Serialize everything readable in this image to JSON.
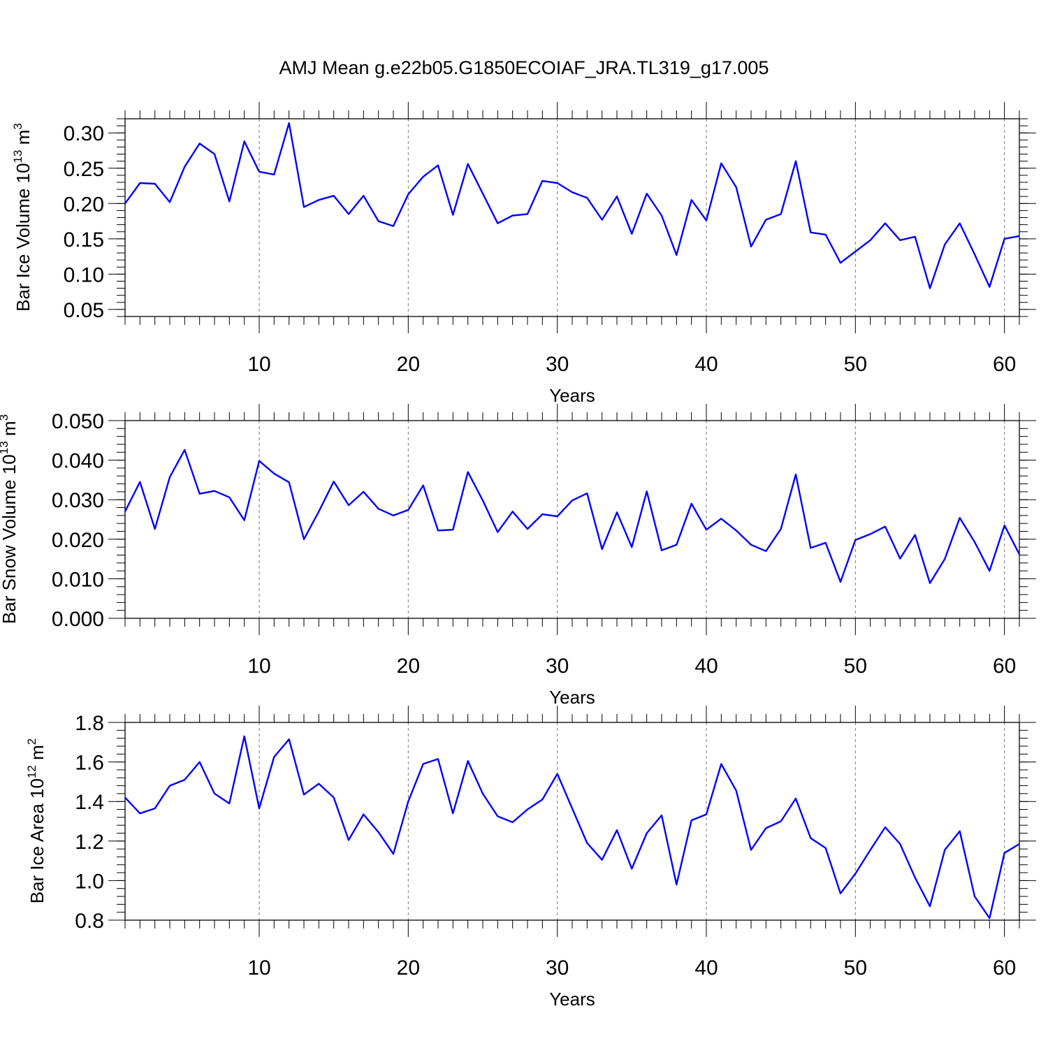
{
  "title": "AMJ Mean g.e22b05.G1850ECOIAF_JRA.TL319_g17.005",
  "line_color": "#0000ff",
  "chart_data": [
    {
      "type": "line",
      "ylabel": "Bar Ice Volume",
      "ylabel_unit_base": "10",
      "ylabel_unit_exp": "13",
      "ylabel_unit": "m",
      "ylabel_unit_power": "3",
      "xlabel": "Years",
      "xlim": [
        1,
        61
      ],
      "ylim": [
        0.04,
        0.32
      ],
      "xticks": [
        10,
        20,
        30,
        40,
        50,
        60
      ],
      "xtick_labels": [
        "10",
        "20",
        "30",
        "40",
        "50",
        "60"
      ],
      "yticks": [
        0.05,
        0.1,
        0.15,
        0.2,
        0.25,
        0.3
      ],
      "ytick_labels": [
        "0.05",
        "0.10",
        "0.15",
        "0.20",
        "0.25",
        "0.30"
      ],
      "yminor_step": 0.01,
      "vgrid": "dashed at major x ticks",
      "x": [
        1,
        2,
        3,
        4,
        5,
        6,
        7,
        8,
        9,
        10,
        11,
        12,
        13,
        14,
        15,
        16,
        17,
        18,
        19,
        20,
        21,
        22,
        23,
        24,
        25,
        26,
        27,
        28,
        29,
        30,
        31,
        32,
        33,
        34,
        35,
        36,
        37,
        38,
        39,
        40,
        41,
        42,
        43,
        44,
        45,
        46,
        47,
        48,
        49,
        50,
        51,
        52,
        53,
        54,
        55,
        56,
        57,
        58,
        59,
        60,
        61
      ],
      "series": [
        {
          "values": [
            0.2,
            0.229,
            0.228,
            0.202,
            0.252,
            0.285,
            0.27,
            0.203,
            0.288,
            0.245,
            0.241,
            0.314,
            0.195,
            0.205,
            0.211,
            0.185,
            0.211,
            0.175,
            0.168,
            0.213,
            0.238,
            0.254,
            0.184,
            0.256,
            0.214,
            0.172,
            0.183,
            0.185,
            0.232,
            0.229,
            0.216,
            0.208,
            0.177,
            0.21,
            0.157,
            0.214,
            0.183,
            0.127,
            0.205,
            0.176,
            0.257,
            0.223,
            0.139,
            0.177,
            0.185,
            0.26,
            0.159,
            0.156,
            0.116,
            0.132,
            0.148,
            0.172,
            0.148,
            0.153,
            0.08,
            0.142,
            0.172,
            0.128,
            0.082,
            0.15,
            0.154
          ]
        }
      ]
    },
    {
      "type": "line",
      "ylabel": "Bar Snow Volume",
      "ylabel_unit_base": "10",
      "ylabel_unit_exp": "13",
      "ylabel_unit": "m",
      "ylabel_unit_power": "3",
      "xlabel": "Years",
      "xlim": [
        1,
        61
      ],
      "ylim": [
        0.0,
        0.05
      ],
      "xticks": [
        10,
        20,
        30,
        40,
        50,
        60
      ],
      "xtick_labels": [
        "10",
        "20",
        "30",
        "40",
        "50",
        "60"
      ],
      "yticks": [
        0.0,
        0.01,
        0.02,
        0.03,
        0.04,
        0.05
      ],
      "ytick_labels": [
        "0.000",
        "0.010",
        "0.020",
        "0.030",
        "0.040",
        "0.050"
      ],
      "yminor_step": 0.002,
      "vgrid": "dashed at major x ticks",
      "x": [
        1,
        2,
        3,
        4,
        5,
        6,
        7,
        8,
        9,
        10,
        11,
        12,
        13,
        14,
        15,
        16,
        17,
        18,
        19,
        20,
        21,
        22,
        23,
        24,
        25,
        26,
        27,
        28,
        29,
        30,
        31,
        32,
        33,
        34,
        35,
        36,
        37,
        38,
        39,
        40,
        41,
        42,
        43,
        44,
        45,
        46,
        47,
        48,
        49,
        50,
        51,
        52,
        53,
        54,
        55,
        56,
        57,
        58,
        59,
        60,
        61
      ],
      "series": [
        {
          "values": [
            0.027,
            0.0345,
            0.0226,
            0.0357,
            0.0426,
            0.0315,
            0.0322,
            0.0306,
            0.0248,
            0.0398,
            0.0366,
            0.0344,
            0.02,
            0.027,
            0.0346,
            0.0286,
            0.032,
            0.0277,
            0.026,
            0.0274,
            0.0336,
            0.0222,
            0.0224,
            0.037,
            0.0298,
            0.0218,
            0.027,
            0.0226,
            0.0263,
            0.0258,
            0.0298,
            0.0316,
            0.0175,
            0.0268,
            0.018,
            0.0321,
            0.0172,
            0.0186,
            0.029,
            0.0224,
            0.0252,
            0.0222,
            0.0186,
            0.017,
            0.0226,
            0.0364,
            0.0178,
            0.0191,
            0.0092,
            0.0198,
            0.0213,
            0.0232,
            0.0151,
            0.0211,
            0.0089,
            0.015,
            0.0254,
            0.0193,
            0.012,
            0.0235,
            0.0162
          ]
        }
      ]
    },
    {
      "type": "line",
      "ylabel": "Bar Ice Area",
      "ylabel_unit_base": "10",
      "ylabel_unit_exp": "12",
      "ylabel_unit": "m",
      "ylabel_unit_power": "2",
      "xlabel": "Years",
      "xlim": [
        1,
        61
      ],
      "ylim": [
        0.8,
        1.8
      ],
      "xticks": [
        10,
        20,
        30,
        40,
        50,
        60
      ],
      "xtick_labels": [
        "10",
        "20",
        "30",
        "40",
        "50",
        "60"
      ],
      "yticks": [
        0.8,
        1.0,
        1.2,
        1.4,
        1.6,
        1.8
      ],
      "ytick_labels": [
        "0.8",
        "1.0",
        "1.2",
        "1.4",
        "1.6",
        "1.8"
      ],
      "yminor_step": 0.04,
      "vgrid": "dashed at major x ticks",
      "x": [
        1,
        2,
        3,
        4,
        5,
        6,
        7,
        8,
        9,
        10,
        11,
        12,
        13,
        14,
        15,
        16,
        17,
        18,
        19,
        20,
        21,
        22,
        23,
        24,
        25,
        26,
        27,
        28,
        29,
        30,
        31,
        32,
        33,
        34,
        35,
        36,
        37,
        38,
        39,
        40,
        41,
        42,
        43,
        44,
        45,
        46,
        47,
        48,
        49,
        50,
        51,
        52,
        53,
        54,
        55,
        56,
        57,
        58,
        59,
        60,
        61
      ],
      "series": [
        {
          "values": [
            1.42,
            1.34,
            1.365,
            1.48,
            1.51,
            1.6,
            1.44,
            1.39,
            1.73,
            1.365,
            1.625,
            1.715,
            1.435,
            1.49,
            1.42,
            1.205,
            1.335,
            1.245,
            1.135,
            1.4,
            1.59,
            1.615,
            1.34,
            1.605,
            1.44,
            1.325,
            1.295,
            1.36,
            1.41,
            1.54,
            1.365,
            1.19,
            1.105,
            1.255,
            1.06,
            1.24,
            1.33,
            0.98,
            1.305,
            1.335,
            1.59,
            1.455,
            1.155,
            1.265,
            1.3,
            1.415,
            1.215,
            1.165,
            0.935,
            1.035,
            1.155,
            1.27,
            1.185,
            1.015,
            0.87,
            1.155,
            1.25,
            0.92,
            0.81,
            1.14,
            1.185
          ]
        }
      ]
    }
  ]
}
